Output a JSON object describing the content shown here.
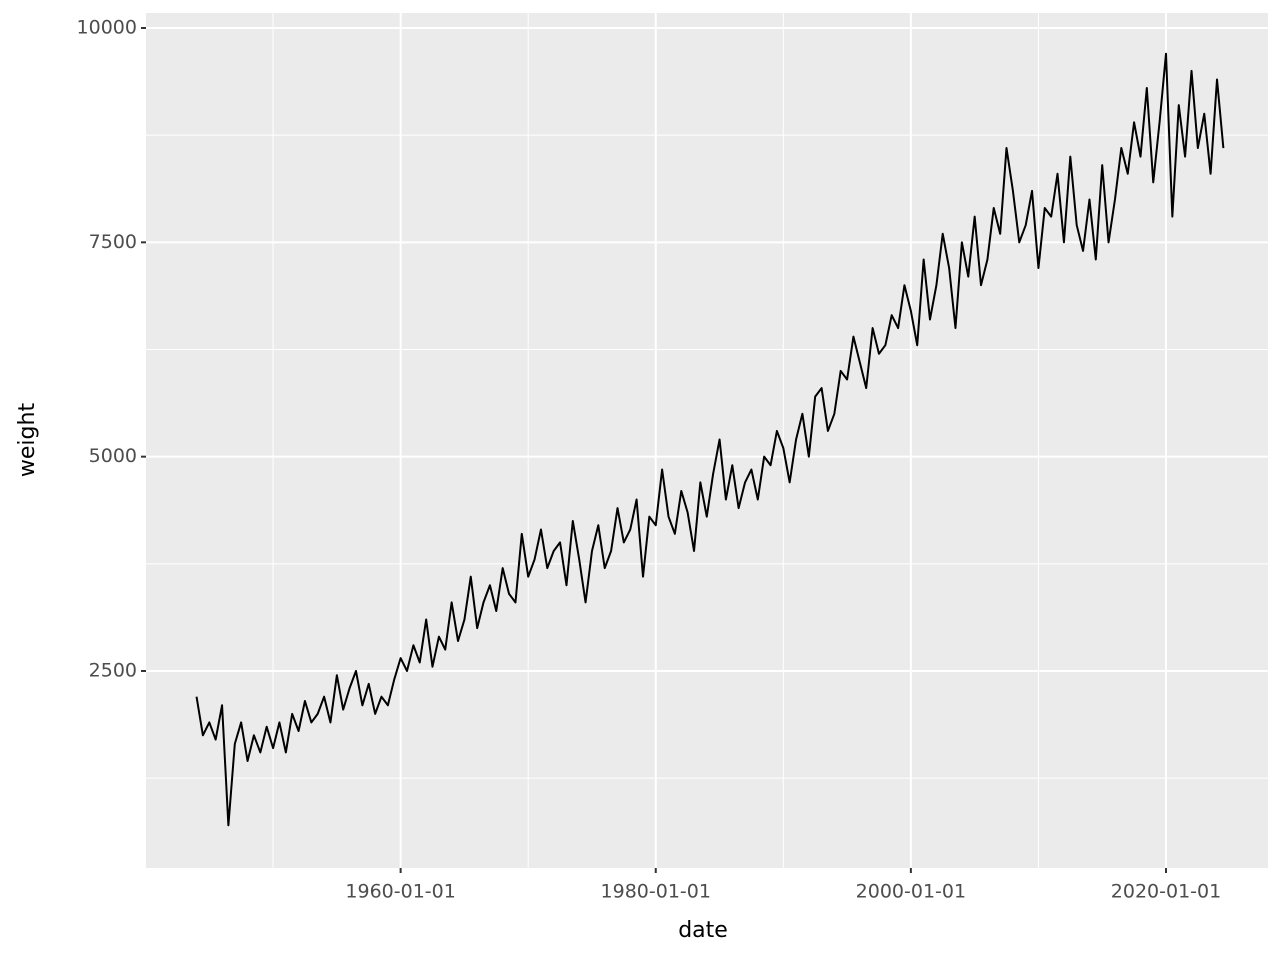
{
  "chart_data": {
    "type": "line",
    "x_label": "date",
    "y_label": "weight",
    "x": [
      "1944-01-01",
      "1944-07-01",
      "1945-01-01",
      "1945-07-01",
      "1946-01-01",
      "1946-07-01",
      "1947-01-01",
      "1947-07-01",
      "1948-01-01",
      "1948-07-01",
      "1949-01-01",
      "1949-07-01",
      "1950-01-01",
      "1950-07-01",
      "1951-01-01",
      "1951-07-01",
      "1952-01-01",
      "1952-07-01",
      "1953-01-01",
      "1953-07-01",
      "1954-01-01",
      "1954-07-01",
      "1955-01-01",
      "1955-07-01",
      "1956-01-01",
      "1956-07-01",
      "1957-01-01",
      "1957-07-01",
      "1958-01-01",
      "1958-07-01",
      "1959-01-01",
      "1959-07-01",
      "1960-01-01",
      "1960-07-01",
      "1961-01-01",
      "1961-07-01",
      "1962-01-01",
      "1962-07-01",
      "1963-01-01",
      "1963-07-01",
      "1964-01-01",
      "1964-07-01",
      "1965-01-01",
      "1965-07-01",
      "1966-01-01",
      "1966-07-01",
      "1967-01-01",
      "1967-07-01",
      "1968-01-01",
      "1968-07-01",
      "1969-01-01",
      "1969-07-01",
      "1970-01-01",
      "1970-07-01",
      "1971-01-01",
      "1971-07-01",
      "1972-01-01",
      "1972-07-01",
      "1973-01-01",
      "1973-07-01",
      "1974-01-01",
      "1974-07-01",
      "1975-01-01",
      "1975-07-01",
      "1976-01-01",
      "1976-07-01",
      "1977-01-01",
      "1977-07-01",
      "1978-01-01",
      "1978-07-01",
      "1979-01-01",
      "1979-07-01",
      "1980-01-01",
      "1980-07-01",
      "1981-01-01",
      "1981-07-01",
      "1982-01-01",
      "1982-07-01",
      "1983-01-01",
      "1983-07-01",
      "1984-01-01",
      "1984-07-01",
      "1985-01-01",
      "1985-07-01",
      "1986-01-01",
      "1986-07-01",
      "1987-01-01",
      "1987-07-01",
      "1988-01-01",
      "1988-07-01",
      "1989-01-01",
      "1989-07-01",
      "1990-01-01",
      "1990-07-01",
      "1991-01-01",
      "1991-07-01",
      "1992-01-01",
      "1992-07-01",
      "1993-01-01",
      "1993-07-01",
      "1994-01-01",
      "1994-07-01",
      "1995-01-01",
      "1995-07-01",
      "1996-01-01",
      "1996-07-01",
      "1997-01-01",
      "1997-07-01",
      "1998-01-01",
      "1998-07-01",
      "1999-01-01",
      "1999-07-01",
      "2000-01-01",
      "2000-07-01",
      "2001-01-01",
      "2001-07-01",
      "2002-01-01",
      "2002-07-01",
      "2003-01-01",
      "2003-07-01",
      "2004-01-01",
      "2004-07-01",
      "2005-01-01",
      "2005-07-01",
      "2006-01-01",
      "2006-07-01",
      "2007-01-01",
      "2007-07-01",
      "2008-01-01",
      "2008-07-01",
      "2009-01-01",
      "2009-07-01",
      "2010-01-01",
      "2010-07-01",
      "2011-01-01",
      "2011-07-01",
      "2012-01-01",
      "2012-07-01",
      "2013-01-01",
      "2013-07-01",
      "2014-01-01",
      "2014-07-01",
      "2015-01-01",
      "2015-07-01",
      "2016-01-01",
      "2016-07-01",
      "2017-01-01",
      "2017-07-01",
      "2018-01-01",
      "2018-07-01",
      "2019-01-01",
      "2019-07-01",
      "2020-01-01",
      "2020-07-01",
      "2021-01-01",
      "2021-07-01",
      "2022-01-01",
      "2022-07-01",
      "2023-01-01",
      "2023-07-01",
      "2024-01-01",
      "2024-07-01"
    ],
    "series": [
      {
        "color": "#000000",
        "values": [
          2200,
          1750,
          1900,
          1700,
          2100,
          700,
          1650,
          1900,
          1450,
          1750,
          1550,
          1850,
          1600,
          1900,
          1550,
          2000,
          1800,
          2150,
          1900,
          2000,
          2200,
          1900,
          2450,
          2050,
          2300,
          2500,
          2100,
          2350,
          2000,
          2200,
          2100,
          2400,
          2650,
          2500,
          2800,
          2600,
          3100,
          2550,
          2900,
          2750,
          3300,
          2850,
          3100,
          3600,
          3000,
          3300,
          3500,
          3200,
          3700,
          3400,
          3300,
          4100,
          3600,
          3800,
          4150,
          3700,
          3900,
          4000,
          3500,
          4250,
          3800,
          3300,
          3900,
          4200,
          3700,
          3900,
          4400,
          4000,
          4150,
          4500,
          3600,
          4300,
          4200,
          4850,
          4300,
          4100,
          4600,
          4350,
          3900,
          4700,
          4300,
          4800,
          5200,
          4500,
          4900,
          4400,
          4700,
          4850,
          4500,
          5000,
          4900,
          5300,
          5100,
          4700,
          5200,
          5500,
          5000,
          5700,
          5800,
          5300,
          5500,
          6000,
          5900,
          6400,
          6100,
          5800,
          6500,
          6200,
          6300,
          6650,
          6500,
          7000,
          6700,
          6300,
          7300,
          6600,
          7000,
          7600,
          7200,
          6500,
          7500,
          7100,
          7800,
          7000,
          7300,
          7900,
          7600,
          8600,
          8100,
          7500,
          7700,
          8100,
          7200,
          7900,
          7800,
          8300,
          7500,
          8500,
          7700,
          7400,
          8000,
          7300,
          8400,
          7500,
          8000,
          8600,
          8300,
          8900,
          8500,
          9300,
          8200,
          8900,
          9700,
          7800,
          9100,
          8500,
          9500,
          8600,
          9000,
          8300,
          9400,
          8600
        ]
      }
    ],
    "xlim": [
      "1940-01-15",
      "2027-12-31"
    ],
    "xticks": [
      "1960-01-01",
      "1980-01-01",
      "2000-01-01",
      "2020-01-01"
    ],
    "ylim": [
      202,
      10175
    ],
    "yticks": [
      2500,
      5000,
      7500,
      10000
    ],
    "grid": true
  }
}
